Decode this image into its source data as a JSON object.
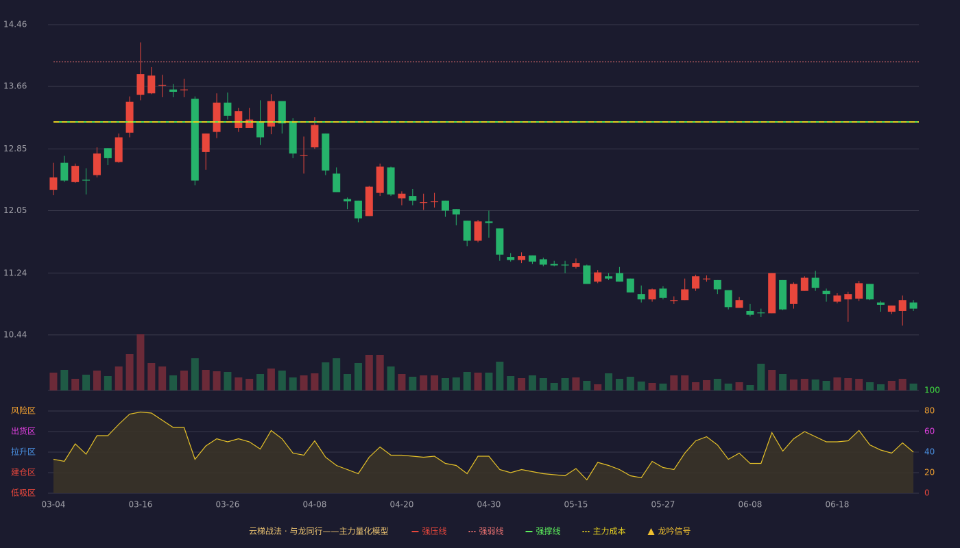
{
  "chart_data": {
    "type": "candlestick",
    "categories": [
      "03-04",
      null,
      null,
      null,
      null,
      null,
      null,
      null,
      "03-16",
      null,
      null,
      null,
      null,
      null,
      null,
      null,
      "03-26",
      null,
      null,
      null,
      null,
      null,
      null,
      null,
      "04-08",
      null,
      null,
      null,
      null,
      null,
      null,
      null,
      "04-20",
      null,
      null,
      null,
      null,
      null,
      null,
      null,
      "04-30",
      null,
      null,
      null,
      null,
      null,
      null,
      null,
      "05-15",
      null,
      null,
      null,
      null,
      null,
      null,
      null,
      "05-27",
      null,
      null,
      null,
      null,
      null,
      null,
      null,
      "06-08",
      null,
      null,
      null,
      null,
      null,
      null,
      null,
      "06-18",
      null,
      null,
      null,
      null,
      null,
      null,
      null
    ],
    "open": [
      12.32,
      12.67,
      12.42,
      12.45,
      12.51,
      12.86,
      12.68,
      13.06,
      13.55,
      13.57,
      13.67,
      13.62,
      13.61,
      13.5,
      12.81,
      13.07,
      13.45,
      13.12,
      13.12,
      13.2,
      13.14,
      13.47,
      13.21,
      12.76,
      12.87,
      13.05,
      12.53,
      12.2,
      12.18,
      11.98,
      12.28,
      12.61,
      12.21,
      12.24,
      12.15,
      12.16,
      12.18,
      12.07,
      11.92,
      11.66,
      11.91,
      11.82,
      11.45,
      11.41,
      11.47,
      11.42,
      11.36,
      11.35,
      11.32,
      11.34,
      11.13,
      11.2,
      11.24,
      11.17,
      10.97,
      10.9,
      11.04,
      10.88,
      10.89,
      11.04,
      11.16,
      11.15,
      11.02,
      10.79,
      10.75,
      10.73,
      10.72,
      11.15,
      10.84,
      11.01,
      11.18,
      11.01,
      10.87,
      10.9,
      10.91,
      11.1,
      10.86,
      10.74,
      10.75,
      10.86
    ],
    "close": [
      12.48,
      12.44,
      12.63,
      12.44,
      12.79,
      12.73,
      13.0,
      13.46,
      13.82,
      13.8,
      13.68,
      13.59,
      13.62,
      12.44,
      13.05,
      13.45,
      13.28,
      13.34,
      13.23,
      13.0,
      13.47,
      13.18,
      12.79,
      12.77,
      13.16,
      12.57,
      12.29,
      12.17,
      11.95,
      12.36,
      12.62,
      12.26,
      12.27,
      12.18,
      12.16,
      12.17,
      12.05,
      12.0,
      11.66,
      11.91,
      11.89,
      11.48,
      11.41,
      11.46,
      11.39,
      11.35,
      11.34,
      11.34,
      11.37,
      11.1,
      11.25,
      11.17,
      11.13,
      10.99,
      10.9,
      11.03,
      10.92,
      10.89,
      11.03,
      11.2,
      11.17,
      11.03,
      10.8,
      10.89,
      10.7,
      10.72,
      11.24,
      10.77,
      11.1,
      11.18,
      11.05,
      10.97,
      10.95,
      10.97,
      11.11,
      10.9,
      10.83,
      10.82,
      10.89,
      10.78
    ],
    "high": [
      12.67,
      12.76,
      12.66,
      12.6,
      12.87,
      12.86,
      13.05,
      13.53,
      14.23,
      13.91,
      13.81,
      13.69,
      13.76,
      13.53,
      13.05,
      13.57,
      13.58,
      13.38,
      13.38,
      13.48,
      13.56,
      13.47,
      13.25,
      13.01,
      13.26,
      13.05,
      12.61,
      12.22,
      12.18,
      12.37,
      12.66,
      12.62,
      12.3,
      12.33,
      12.27,
      12.28,
      12.18,
      12.07,
      11.92,
      11.93,
      12.05,
      11.82,
      11.5,
      11.51,
      11.47,
      11.44,
      11.4,
      11.4,
      11.43,
      11.35,
      11.28,
      11.24,
      11.32,
      11.17,
      11.08,
      11.04,
      11.07,
      10.94,
      11.17,
      11.22,
      11.21,
      11.15,
      11.02,
      10.93,
      10.84,
      10.78,
      11.24,
      11.15,
      11.12,
      11.2,
      11.27,
      11.04,
      10.98,
      11.0,
      11.14,
      11.1,
      10.88,
      10.82,
      10.95,
      10.89
    ],
    "low": [
      12.25,
      12.42,
      12.41,
      12.26,
      12.48,
      12.64,
      12.67,
      13.0,
      13.48,
      13.56,
      13.52,
      13.52,
      13.52,
      12.38,
      12.58,
      12.99,
      13.23,
      13.07,
      13.12,
      12.9,
      13.04,
      13.05,
      12.73,
      12.53,
      12.85,
      12.51,
      12.29,
      12.07,
      11.9,
      11.98,
      12.24,
      12.24,
      12.12,
      12.12,
      12.06,
      12.09,
      11.97,
      11.86,
      11.59,
      11.64,
      11.7,
      11.4,
      11.39,
      11.37,
      11.36,
      11.33,
      11.33,
      11.24,
      11.3,
      11.1,
      11.11,
      11.15,
      11.13,
      10.99,
      10.86,
      10.87,
      10.9,
      10.84,
      10.89,
      11.01,
      11.13,
      10.97,
      10.77,
      10.79,
      10.68,
      10.67,
      10.72,
      10.76,
      10.78,
      11.01,
      11.01,
      10.87,
      10.85,
      10.61,
      10.88,
      10.89,
      10.74,
      10.71,
      10.56,
      10.75
    ],
    "volume": [
      26,
      30,
      17,
      23,
      29,
      21,
      35,
      53,
      82,
      40,
      35,
      22,
      29,
      47,
      30,
      28,
      27,
      19,
      17,
      24,
      32,
      29,
      19,
      22,
      25,
      41,
      47,
      24,
      40,
      52,
      52,
      35,
      24,
      20,
      22,
      22,
      18,
      19,
      27,
      26,
      26,
      42,
      21,
      18,
      22,
      18,
      11,
      18,
      19,
      14,
      9,
      25,
      17,
      20,
      13,
      11,
      10,
      22,
      22,
      12,
      15,
      17,
      10,
      12,
      8,
      39,
      30,
      24,
      16,
      17,
      16,
      14,
      19,
      18,
      17,
      12,
      9,
      14,
      17,
      10
    ],
    "up_color": "#e8473c",
    "down_color": "#26b36b",
    "volume_up_color": "#6b2a38",
    "volume_down_color": "#1f5a45",
    "ylim": [
      9.72,
      14.46
    ],
    "yticks": [
      10.44,
      11.24,
      12.05,
      12.85,
      13.66,
      14.46
    ],
    "grid": true,
    "lines": [
      {
        "name": "强压线",
        "color": "#e8473c",
        "style": "solid"
      },
      {
        "name": "强弱线",
        "color": "#e87070",
        "style": "dotted",
        "value": 13.98
      },
      {
        "name": "强撑线",
        "color": "#5cf05c",
        "style": "solid",
        "value": 13.2
      },
      {
        "name": "主力成本",
        "color": "#e6d020",
        "style": "dashed",
        "value": 13.2
      }
    ],
    "signal": {
      "name": "龙吟信号",
      "color": "#f0c030"
    },
    "legend_title": "云梯战法 · 与龙同行——主力量化模型",
    "indicator": {
      "values": [
        33,
        31,
        48,
        38,
        56,
        56,
        67,
        77,
        79,
        78,
        71,
        64,
        64,
        33,
        46,
        53,
        50,
        53,
        50,
        43,
        61,
        53,
        39,
        37,
        51,
        35,
        27,
        23,
        19,
        35,
        45,
        37,
        37,
        36,
        35,
        36,
        29,
        27,
        19,
        36,
        36,
        23,
        20,
        23,
        21,
        19,
        18,
        17,
        24,
        13,
        30,
        27,
        23,
        17,
        15,
        31,
        25,
        23,
        39,
        51,
        55,
        47,
        33,
        39,
        29,
        29,
        59,
        41,
        53,
        60,
        55,
        50,
        50,
        51,
        61,
        47,
        42,
        39,
        49,
        40
      ],
      "color": "#e6c229",
      "ylim": [
        0,
        100
      ],
      "yticks": [
        0,
        20,
        40,
        60,
        80,
        100
      ],
      "ytick_colors": [
        "#e8473c",
        "#f0a030",
        "#4a90e2",
        "#e040e0",
        "#f0a030",
        "#40e040"
      ],
      "zones": [
        {
          "value": 80,
          "label": "风险区",
          "color": "#f0a030"
        },
        {
          "value": 60,
          "label": "出货区",
          "color": "#e040e0"
        },
        {
          "value": 40,
          "label": "拉升区",
          "color": "#4a90e2"
        },
        {
          "value": 20,
          "label": "建仓区",
          "color": "#e8473c"
        },
        {
          "value": 0,
          "label": "低吸区",
          "color": "#e8473c"
        }
      ]
    }
  }
}
